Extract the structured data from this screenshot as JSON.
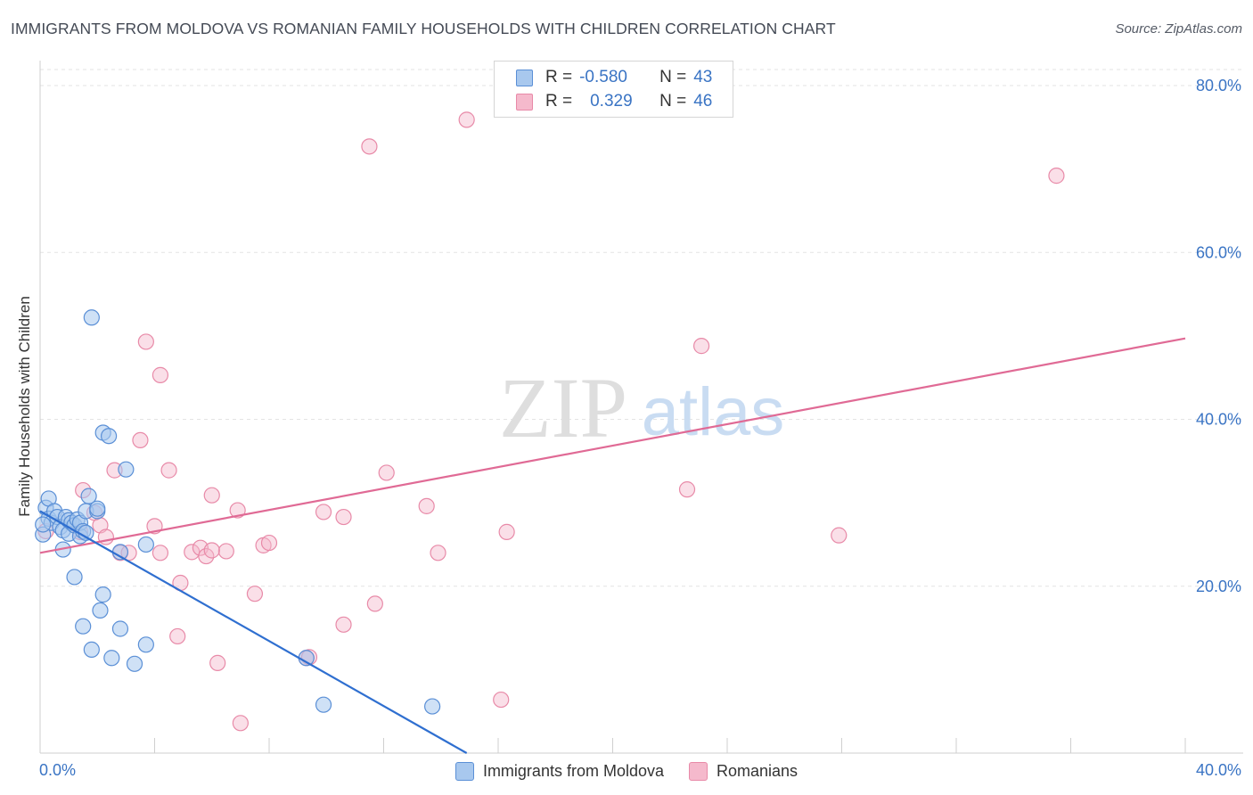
{
  "header": {
    "title": "IMMIGRANTS FROM MOLDOVA VS ROMANIAN FAMILY HOUSEHOLDS WITH CHILDREN CORRELATION CHART",
    "source": "Source: ZipAtlas.com"
  },
  "legend": {
    "moldova": {
      "r_label": "R =",
      "r_value": "-0.580",
      "n_label": "N =",
      "n_value": "43"
    },
    "romanians": {
      "r_label": "R =",
      "r_value": "0.329",
      "n_label": "N =",
      "n_value": "46"
    }
  },
  "bottom_legend": {
    "moldova": "Immigrants from Moldova",
    "romanians": "Romanians"
  },
  "watermark": {
    "zip": "ZIP",
    "atlas": "atlas"
  },
  "colors": {
    "moldova_fill": "#a8c8ee",
    "moldova_stroke": "#5a8fd6",
    "moldova_line": "#2f6fd0",
    "romanians_fill": "#f5b9cc",
    "romanians_stroke": "#e88aa8",
    "romanians_line": "#e06a95",
    "tick_text": "#3a74c4"
  },
  "chart_data": {
    "type": "scatter",
    "title": "IMMIGRANTS FROM MOLDOVA VS ROMANIAN FAMILY HOUSEHOLDS WITH CHILDREN CORRELATION CHART",
    "xlabel": "",
    "ylabel": "Family Households with Children",
    "xlim": [
      0,
      40
    ],
    "ylim": [
      0,
      80
    ],
    "x_tick_labels": [
      "0.0%",
      "40.0%"
    ],
    "y_ticks": [
      20,
      40,
      60,
      80
    ],
    "y_tick_labels": [
      "20.0%",
      "40.0%",
      "60.0%",
      "80.0%"
    ],
    "grid": true,
    "series": [
      {
        "name": "Immigrants from Moldova",
        "r": -0.58,
        "n": 43,
        "trend": {
          "x": [
            0.0,
            14.9
          ],
          "y": [
            29.0,
            0.0
          ]
        },
        "points": [
          [
            0.1,
            26.2
          ],
          [
            0.2,
            29.4
          ],
          [
            0.3,
            30.5
          ],
          [
            0.3,
            28.1
          ],
          [
            0.4,
            27.6
          ],
          [
            0.5,
            29.0
          ],
          [
            0.6,
            28.3
          ],
          [
            0.7,
            27.1
          ],
          [
            0.8,
            26.7
          ],
          [
            0.8,
            24.4
          ],
          [
            0.9,
            28.3
          ],
          [
            1.0,
            27.9
          ],
          [
            1.0,
            26.3
          ],
          [
            1.1,
            27.6
          ],
          [
            1.2,
            27.3
          ],
          [
            1.2,
            21.1
          ],
          [
            1.3,
            28.0
          ],
          [
            1.4,
            26.0
          ],
          [
            1.4,
            27.6
          ],
          [
            1.5,
            26.6
          ],
          [
            1.5,
            15.2
          ],
          [
            1.6,
            26.4
          ],
          [
            1.6,
            29.0
          ],
          [
            1.7,
            30.8
          ],
          [
            1.8,
            52.2
          ],
          [
            1.8,
            12.4
          ],
          [
            2.0,
            29.0
          ],
          [
            2.0,
            29.3
          ],
          [
            2.1,
            17.1
          ],
          [
            2.2,
            38.4
          ],
          [
            2.2,
            19.0
          ],
          [
            2.4,
            38.0
          ],
          [
            2.5,
            11.4
          ],
          [
            2.8,
            24.1
          ],
          [
            2.8,
            14.9
          ],
          [
            3.0,
            34.0
          ],
          [
            3.3,
            10.7
          ],
          [
            3.7,
            13.0
          ],
          [
            3.7,
            25.0
          ],
          [
            9.3,
            11.4
          ],
          [
            9.9,
            5.8
          ],
          [
            13.7,
            5.6
          ],
          [
            0.1,
            27.4
          ]
        ]
      },
      {
        "name": "Romanians",
        "r": 0.329,
        "n": 46,
        "trend": {
          "x": [
            0.0,
            40.0
          ],
          "y": [
            24.0,
            49.7
          ]
        },
        "points": [
          [
            0.2,
            26.6
          ],
          [
            1.4,
            26.5
          ],
          [
            1.5,
            31.5
          ],
          [
            1.9,
            28.8
          ],
          [
            2.1,
            27.3
          ],
          [
            2.3,
            25.9
          ],
          [
            2.6,
            33.9
          ],
          [
            2.8,
            24.0
          ],
          [
            3.1,
            24.0
          ],
          [
            3.5,
            37.5
          ],
          [
            3.7,
            49.3
          ],
          [
            4.0,
            27.2
          ],
          [
            4.2,
            45.3
          ],
          [
            4.5,
            33.9
          ],
          [
            4.8,
            14.0
          ],
          [
            4.9,
            20.4
          ],
          [
            5.3,
            24.1
          ],
          [
            5.6,
            24.6
          ],
          [
            5.8,
            23.6
          ],
          [
            6.0,
            30.9
          ],
          [
            6.2,
            10.8
          ],
          [
            6.5,
            24.2
          ],
          [
            6.9,
            29.1
          ],
          [
            7.0,
            3.6
          ],
          [
            7.5,
            19.1
          ],
          [
            7.8,
            24.9
          ],
          [
            8.0,
            25.2
          ],
          [
            9.3,
            11.4
          ],
          [
            9.9,
            28.9
          ],
          [
            10.6,
            15.4
          ],
          [
            10.6,
            28.3
          ],
          [
            11.5,
            72.7
          ],
          [
            11.7,
            17.9
          ],
          [
            12.1,
            33.6
          ],
          [
            13.5,
            29.6
          ],
          [
            13.9,
            24.0
          ],
          [
            14.9,
            75.9
          ],
          [
            16.1,
            6.4
          ],
          [
            16.3,
            26.5
          ],
          [
            22.6,
            31.6
          ],
          [
            23.1,
            48.8
          ],
          [
            27.9,
            26.1
          ],
          [
            35.5,
            69.2
          ],
          [
            4.2,
            24.0
          ],
          [
            9.4,
            11.5
          ],
          [
            6.0,
            24.3
          ]
        ]
      }
    ]
  }
}
